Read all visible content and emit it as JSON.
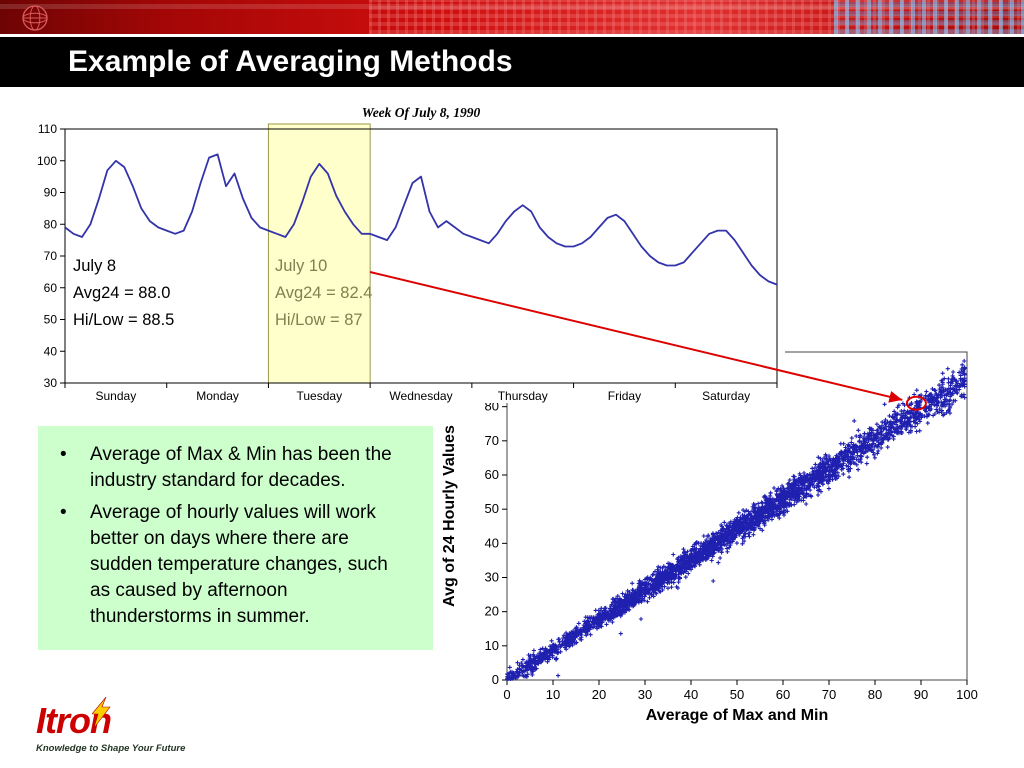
{
  "header": {
    "title": "Example of Averaging Methods"
  },
  "chart_data": [
    {
      "type": "line",
      "title": "Week Of July 8, 1990",
      "x_categories": [
        "Sunday",
        "Monday",
        "Tuesday",
        "Wednesday",
        "Thursday",
        "Friday",
        "Saturday"
      ],
      "ylim": [
        30,
        110
      ],
      "yticks": [
        30,
        40,
        50,
        60,
        70,
        80,
        90,
        100,
        110
      ],
      "points_per_day": 12,
      "values": [
        79,
        77,
        76,
        80,
        88,
        97,
        100,
        98,
        92,
        85,
        81,
        79,
        78,
        77,
        78,
        84,
        93,
        101,
        102,
        92,
        96,
        88,
        82,
        79,
        78,
        77,
        76,
        80,
        87,
        95,
        99,
        96,
        89,
        84,
        80,
        77,
        77,
        76,
        75,
        79,
        86,
        93,
        95,
        84,
        79,
        81,
        79,
        77,
        76,
        75,
        74,
        77,
        81,
        84,
        86,
        84,
        79,
        76,
        74,
        73,
        73,
        74,
        76,
        79,
        82,
        83,
        81,
        77,
        73,
        70,
        68,
        67,
        67,
        68,
        71,
        74,
        77,
        78,
        78,
        75,
        71,
        67,
        64,
        62,
        61
      ],
      "line_color": "#3333aa",
      "highlight": {
        "day": "Tuesday",
        "day_index": 2,
        "fill": "#ffffcc",
        "border": "#9a9a4a"
      },
      "annotations": [
        {
          "lines": [
            "July 8",
            "Avg24 = 88.0",
            "Hi/Low = 88.5"
          ],
          "color": "#000000"
        },
        {
          "lines": [
            "July 10",
            "Avg24 = 82.4",
            "Hi/Low = 87"
          ],
          "color": "#81814f"
        }
      ]
    },
    {
      "type": "scatter",
      "xlabel": "Average of Max and Min",
      "ylabel": "Avg of 24 Hourly Values",
      "xlim": [
        0,
        100
      ],
      "ylim": [
        0,
        96
      ],
      "xticks": [
        0,
        10,
        20,
        30,
        40,
        50,
        60,
        70,
        80,
        90,
        100
      ],
      "yticks": [
        0,
        10,
        20,
        30,
        40,
        50,
        60,
        70,
        80
      ],
      "marker": "+",
      "color": "#2020b0",
      "n_points": 3200,
      "trend_slope": 0.88,
      "trend_intercept": 0,
      "noise_sd": 1.6,
      "seed": 42,
      "circled_point": {
        "x": 89,
        "y": 81
      },
      "circle_color": "#dd0000"
    }
  ],
  "arrow": {
    "color": "#dd0000"
  },
  "bullets": {
    "background": "#ccffcc",
    "bullet_char": "•",
    "items": [
      {
        "text": "Average of Max & Min has been the industry standard for decades."
      },
      {
        "text": "Average of hourly values will work better on days where there are sudden temperature changes, such as caused by afternoon thunderstorms in summer."
      }
    ]
  },
  "logo": {
    "name": "Itron",
    "tagline": "Knowledge to Shape Your Future",
    "color": "#cc0000",
    "bolt_color": "#ffcc00",
    "tagline_color": "#233523"
  }
}
